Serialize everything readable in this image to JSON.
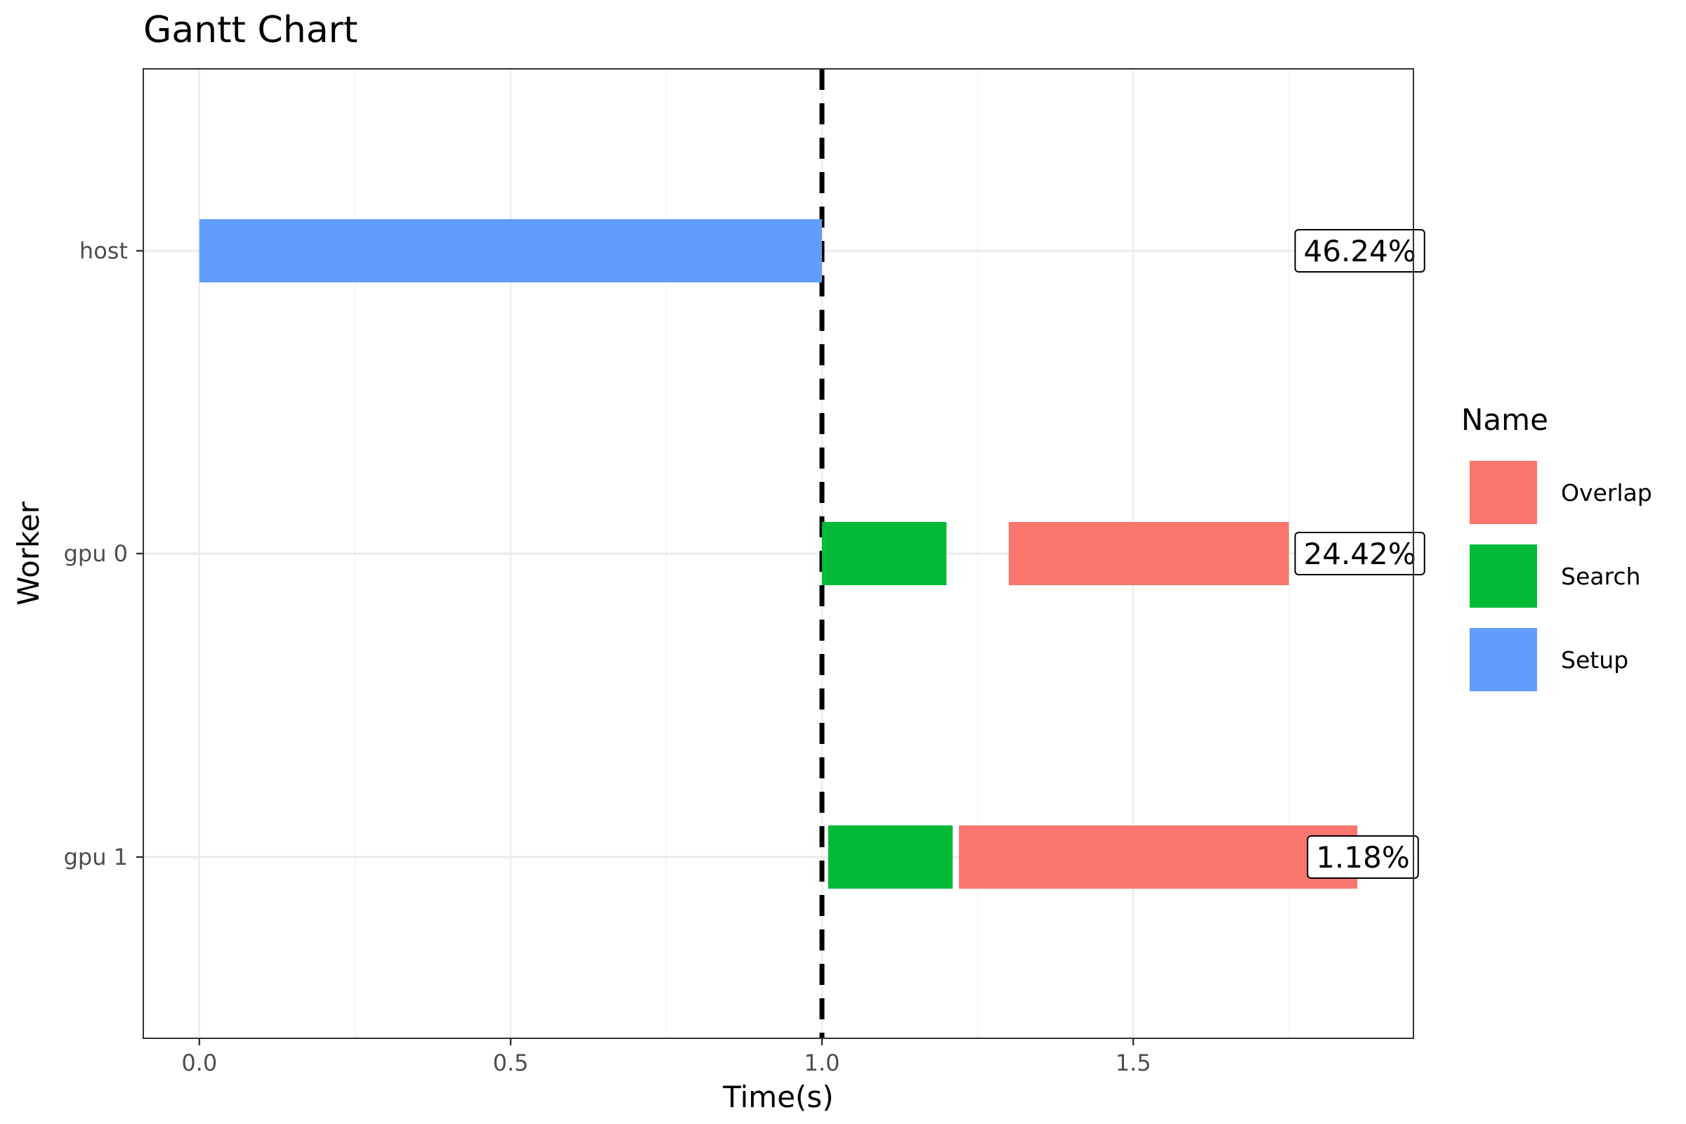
{
  "chart_data": {
    "type": "gantt",
    "title": "Gantt Chart",
    "xlabel": "Time(s)",
    "ylabel": "Worker",
    "xlim": [
      -0.09,
      1.95
    ],
    "x_ticks": [
      0.0,
      0.5,
      1.0,
      1.5
    ],
    "x_tick_labels": [
      "0.0",
      "0.5",
      "1.0",
      "1.5"
    ],
    "workers": [
      "host",
      "gpu 0",
      "gpu 1"
    ],
    "grid": true,
    "vline": {
      "x": 1.0,
      "style": "dashed",
      "color": "#000000"
    },
    "legend": {
      "title": "Name",
      "position": "right",
      "items": [
        {
          "name": "Overlap",
          "color": "#F8766D"
        },
        {
          "name": "Search",
          "color": "#00BA38"
        },
        {
          "name": "Setup",
          "color": "#619CFF"
        }
      ]
    },
    "tasks": [
      {
        "worker": "host",
        "name": "Setup",
        "start": 0.0,
        "end": 1.0
      },
      {
        "worker": "gpu 0",
        "name": "Search",
        "start": 1.0,
        "end": 1.2
      },
      {
        "worker": "gpu 0",
        "name": "Overlap",
        "start": 1.3,
        "end": 1.75
      },
      {
        "worker": "gpu 1",
        "name": "Search",
        "start": 1.01,
        "end": 1.21
      },
      {
        "worker": "gpu 1",
        "name": "Overlap",
        "start": 1.22,
        "end": 1.86
      }
    ],
    "annotations": [
      {
        "worker": "host",
        "text": "46.24%",
        "x": 1.76
      },
      {
        "worker": "gpu 0",
        "text": "24.42%",
        "x": 1.76
      },
      {
        "worker": "gpu 1",
        "text": "1.18%",
        "x": 1.78
      }
    ]
  }
}
